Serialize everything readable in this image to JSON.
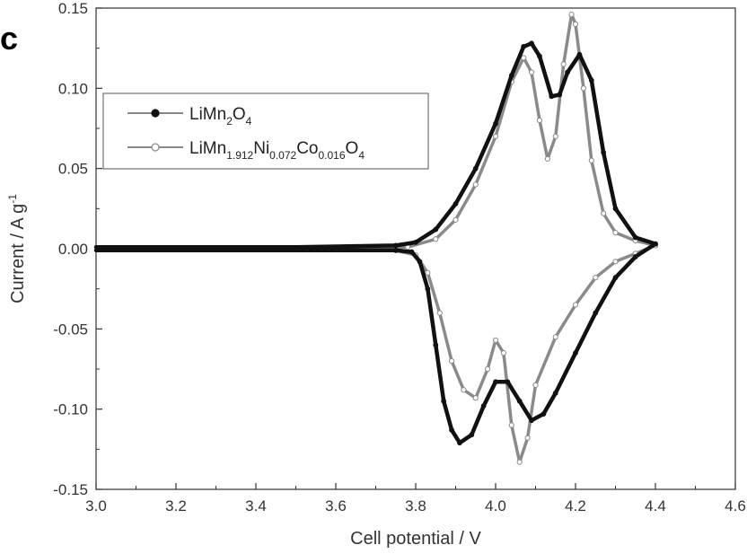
{
  "panel_label": "c",
  "chart_data": {
    "type": "line",
    "xlabel": "Cell potential / V",
    "ylabel_text": "Current / A g",
    "ylabel_sup": "-1",
    "xlim": [
      3.0,
      4.6
    ],
    "ylim": [
      -0.15,
      0.15
    ],
    "xticks": [
      "3.0",
      "3.2",
      "3.4",
      "3.6",
      "3.8",
      "4.0",
      "4.2",
      "4.4",
      "4.6"
    ],
    "yticks": [
      "0.15",
      "0.10",
      "0.05",
      "0.00",
      "-0.05",
      "-0.10",
      "-0.15"
    ],
    "grid": false,
    "legend_position": "upper-left",
    "series": [
      {
        "legend_parts": [
          {
            "t": "LiMn",
            "sub": false
          },
          {
            "t": "2",
            "sub": true
          },
          {
            "t": "O",
            "sub": false
          },
          {
            "t": "4",
            "sub": true
          }
        ],
        "color": "#111111",
        "marker": "filled-circle",
        "anodic": [
          [
            3.0,
            0.001
          ],
          [
            3.5,
            0.001
          ],
          [
            3.75,
            0.002
          ],
          [
            3.8,
            0.004
          ],
          [
            3.85,
            0.012
          ],
          [
            3.9,
            0.028
          ],
          [
            3.95,
            0.05
          ],
          [
            4.0,
            0.078
          ],
          [
            4.04,
            0.108
          ],
          [
            4.07,
            0.126
          ],
          [
            4.09,
            0.128
          ],
          [
            4.11,
            0.12
          ],
          [
            4.14,
            0.095
          ],
          [
            4.16,
            0.096
          ],
          [
            4.18,
            0.11
          ],
          [
            4.21,
            0.121
          ],
          [
            4.24,
            0.105
          ],
          [
            4.27,
            0.06
          ],
          [
            4.3,
            0.025
          ],
          [
            4.35,
            0.007
          ],
          [
            4.4,
            0.003
          ]
        ],
        "cathodic": [
          [
            4.4,
            0.003
          ],
          [
            4.35,
            -0.005
          ],
          [
            4.3,
            -0.018
          ],
          [
            4.25,
            -0.04
          ],
          [
            4.2,
            -0.065
          ],
          [
            4.15,
            -0.09
          ],
          [
            4.12,
            -0.103
          ],
          [
            4.09,
            -0.107
          ],
          [
            4.06,
            -0.095
          ],
          [
            4.03,
            -0.083
          ],
          [
            4.0,
            -0.083
          ],
          [
            3.97,
            -0.098
          ],
          [
            3.94,
            -0.116
          ],
          [
            3.91,
            -0.121
          ],
          [
            3.89,
            -0.113
          ],
          [
            3.87,
            -0.095
          ],
          [
            3.85,
            -0.06
          ],
          [
            3.83,
            -0.025
          ],
          [
            3.81,
            -0.008
          ],
          [
            3.79,
            -0.002
          ],
          [
            3.75,
            -0.001
          ],
          [
            3.5,
            -0.001
          ],
          [
            3.0,
            -0.001
          ]
        ]
      },
      {
        "legend_parts": [
          {
            "t": "LiMn",
            "sub": false
          },
          {
            "t": "1.912",
            "sub": true
          },
          {
            "t": "Ni",
            "sub": false
          },
          {
            "t": "0.072",
            "sub": true
          },
          {
            "t": "Co",
            "sub": false
          },
          {
            "t": "0.016",
            "sub": true
          },
          {
            "t": "O",
            "sub": false
          },
          {
            "t": "4",
            "sub": true
          }
        ],
        "color": "#8a8a8a",
        "marker": "open-circle",
        "anodic": [
          [
            3.0,
            0.0
          ],
          [
            3.5,
            0.0
          ],
          [
            3.78,
            0.001
          ],
          [
            3.85,
            0.006
          ],
          [
            3.9,
            0.018
          ],
          [
            3.95,
            0.04
          ],
          [
            4.0,
            0.07
          ],
          [
            4.04,
            0.104
          ],
          [
            4.07,
            0.119
          ],
          [
            4.09,
            0.11
          ],
          [
            4.11,
            0.08
          ],
          [
            4.13,
            0.056
          ],
          [
            4.15,
            0.07
          ],
          [
            4.17,
            0.115
          ],
          [
            4.19,
            0.146
          ],
          [
            4.2,
            0.14
          ],
          [
            4.22,
            0.1
          ],
          [
            4.24,
            0.055
          ],
          [
            4.27,
            0.022
          ],
          [
            4.3,
            0.01
          ],
          [
            4.35,
            0.005
          ],
          [
            4.4,
            0.002
          ]
        ],
        "cathodic": [
          [
            4.4,
            0.002
          ],
          [
            4.35,
            -0.003
          ],
          [
            4.3,
            -0.008
          ],
          [
            4.25,
            -0.018
          ],
          [
            4.2,
            -0.035
          ],
          [
            4.15,
            -0.055
          ],
          [
            4.1,
            -0.085
          ],
          [
            4.08,
            -0.118
          ],
          [
            4.06,
            -0.133
          ],
          [
            4.04,
            -0.11
          ],
          [
            4.02,
            -0.065
          ],
          [
            4.0,
            -0.057
          ],
          [
            3.98,
            -0.075
          ],
          [
            3.95,
            -0.093
          ],
          [
            3.92,
            -0.088
          ],
          [
            3.89,
            -0.07
          ],
          [
            3.86,
            -0.04
          ],
          [
            3.83,
            -0.015
          ],
          [
            3.8,
            -0.004
          ],
          [
            3.75,
            -0.001
          ],
          [
            3.5,
            0.0
          ],
          [
            3.0,
            0.0
          ]
        ]
      }
    ]
  }
}
